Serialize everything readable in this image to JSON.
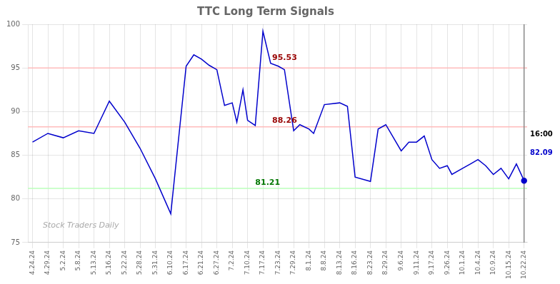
{
  "chart_data": {
    "type": "line",
    "title": "TTC Long Term Signals",
    "x": [
      0,
      1,
      2,
      3,
      4,
      5,
      6,
      7,
      8,
      9,
      10,
      10.5,
      11,
      11.5,
      12,
      12.5,
      13,
      13.3,
      13.7,
      14,
      14.5,
      15,
      15.5,
      16,
      16.4,
      17,
      17.4,
      18,
      18.3,
      19,
      20,
      20.5,
      21,
      22,
      22.5,
      23,
      24,
      24.5,
      25,
      25.5,
      26,
      26.5,
      27,
      27.3,
      28,
      28.5,
      29,
      29.5,
      30,
      30.5,
      31,
      31.5,
      32
    ],
    "values": [
      86.5,
      87.5,
      87.0,
      87.8,
      87.5,
      91.2,
      88.8,
      85.8,
      82.3,
      78.3,
      95.2,
      96.5,
      96.0,
      95.3,
      94.8,
      90.7,
      91.0,
      88.8,
      92.5,
      89.0,
      88.4,
      99.2,
      95.53,
      95.2,
      94.8,
      87.8,
      88.5,
      88.0,
      87.5,
      90.8,
      91.0,
      90.6,
      82.5,
      82.0,
      88.0,
      88.5,
      85.5,
      86.5,
      86.5,
      87.2,
      84.5,
      83.5,
      83.8,
      82.8,
      83.5,
      84.0,
      84.5,
      83.8,
      82.8,
      83.5,
      82.3,
      84.0,
      82.09
    ],
    "color": "#0000cc",
    "xlim": [
      -0.3,
      32.2
    ],
    "xticks": [
      {
        "value": 0,
        "label": "4.24.24"
      },
      {
        "value": 1,
        "label": "4.29.24"
      },
      {
        "value": 2,
        "label": "5.2.24"
      },
      {
        "value": 3,
        "label": "5.8.24"
      },
      {
        "value": 4,
        "label": "5.13.24"
      },
      {
        "value": 5,
        "label": "5.16.24"
      },
      {
        "value": 6,
        "label": "5.22.24"
      },
      {
        "value": 7,
        "label": "5.28.24"
      },
      {
        "value": 8,
        "label": "5.31.24"
      },
      {
        "value": 9,
        "label": "6.10.24"
      },
      {
        "value": 10,
        "label": "6.17.24"
      },
      {
        "value": 11,
        "label": "6.21.24"
      },
      {
        "value": 12,
        "label": "6.27.24"
      },
      {
        "value": 13,
        "label": "7.2.24"
      },
      {
        "value": 14,
        "label": "7.10.24"
      },
      {
        "value": 15,
        "label": "7.17.24"
      },
      {
        "value": 16,
        "label": "7.23.24"
      },
      {
        "value": 17,
        "label": "7.29.24"
      },
      {
        "value": 18,
        "label": "8.1.24"
      },
      {
        "value": 19,
        "label": "8.8.24"
      },
      {
        "value": 20,
        "label": "8.13.24"
      },
      {
        "value": 21,
        "label": "8.16.24"
      },
      {
        "value": 22,
        "label": "8.23.24"
      },
      {
        "value": 23,
        "label": "8.29.24"
      },
      {
        "value": 24,
        "label": "9.6.24"
      },
      {
        "value": 25,
        "label": "9.11.24"
      },
      {
        "value": 26,
        "label": "9.17.24"
      },
      {
        "value": 27,
        "label": "9.26.24"
      },
      {
        "value": 28,
        "label": "10.1.24"
      },
      {
        "value": 29,
        "label": "10.4.24"
      },
      {
        "value": 30,
        "label": "10.9.24"
      },
      {
        "value": 31,
        "label": "10.15.24"
      },
      {
        "value": 32,
        "label": "10.22.24"
      }
    ],
    "ylim": [
      75,
      100
    ],
    "yticks": [
      75,
      80,
      85,
      90,
      95,
      100
    ],
    "grid": true,
    "hlines": [
      {
        "y": 95.0,
        "color": "#ffbbbb"
      },
      {
        "y": 88.26,
        "color": "#ffbbbb"
      },
      {
        "y": 81.21,
        "color": "#bbffbb"
      }
    ],
    "vlines": [
      {
        "x": 32,
        "color": "#888888"
      }
    ],
    "annotations": [
      {
        "text": "95.53",
        "x": 15.6,
        "y": 95.7,
        "color": "#990000"
      },
      {
        "text": "88.26",
        "x": 15.6,
        "y": 88.5,
        "color": "#990000"
      },
      {
        "text": "81.21",
        "x": 14.5,
        "y": 81.4,
        "color": "#007700"
      }
    ],
    "side_annotations": [
      {
        "text": "16:00",
        "color": "#000000"
      },
      {
        "text": "82.09",
        "color": "#0000cc"
      }
    ],
    "watermark": "Stock Traders Daily"
  }
}
